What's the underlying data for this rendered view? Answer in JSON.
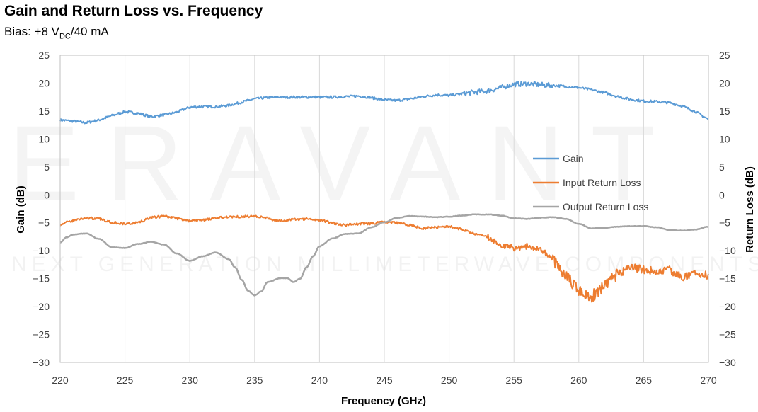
{
  "header": {
    "title": "Gain and Return Loss vs. Frequency",
    "subtitle_prefix": "Bias: +8 V",
    "subtitle_sub": "DC",
    "subtitle_suffix": "/40 mA"
  },
  "watermark": {
    "brand": "ERAVANT",
    "tagline": "NEXT GENERATION MILLIMETERWAVE COMPONENTS"
  },
  "colors": {
    "gain": "#5B9BD5",
    "input_return_loss": "#ED7D31",
    "output_return_loss": "#A5A5A5",
    "grid": "#D9D9D9"
  },
  "chart_data": {
    "type": "line",
    "xlabel": "Frequency (GHz)",
    "ylabel": "Gain (dB)",
    "y2label": "Return Loss (dB)",
    "xlim": [
      220,
      270
    ],
    "ylim": [
      -30,
      25
    ],
    "y2lim": [
      -30,
      25
    ],
    "xticks": [
      220,
      225,
      230,
      235,
      240,
      245,
      250,
      255,
      260,
      265,
      270
    ],
    "yticks": [
      25,
      20,
      15,
      10,
      5,
      0,
      -5,
      -10,
      -15,
      -20,
      -25,
      -30
    ],
    "grid": "vertical",
    "legend_position": "right",
    "series": [
      {
        "name": "Gain",
        "x": [
          220,
          221,
          222,
          223,
          224,
          225,
          226,
          227,
          228,
          229,
          230,
          231,
          232,
          233,
          234,
          235,
          236,
          237,
          238,
          239,
          240,
          241,
          242,
          243,
          244,
          245,
          246,
          247,
          248,
          249,
          250,
          251,
          252,
          253,
          254,
          255,
          256,
          257,
          258,
          259,
          260,
          261,
          262,
          263,
          264,
          265,
          266,
          267,
          268,
          269,
          270
        ],
        "values": [
          13.4,
          13.2,
          12.9,
          13.4,
          14.2,
          14.9,
          14.6,
          14.0,
          14.3,
          14.8,
          15.7,
          15.8,
          15.8,
          16.0,
          16.6,
          17.2,
          17.4,
          17.5,
          17.5,
          17.5,
          17.5,
          17.5,
          17.6,
          17.7,
          17.4,
          17.0,
          16.9,
          17.2,
          17.6,
          17.9,
          17.8,
          18.1,
          18.4,
          18.6,
          19.2,
          19.8,
          19.9,
          19.7,
          19.6,
          19.4,
          19.2,
          18.8,
          18.3,
          17.6,
          17.1,
          16.8,
          16.7,
          16.5,
          15.9,
          14.9,
          13.5
        ]
      },
      {
        "name": "Input Return Loss",
        "x": [
          220,
          221,
          222,
          223,
          224,
          225,
          226,
          227,
          228,
          229,
          230,
          231,
          232,
          233,
          234,
          235,
          236,
          237,
          238,
          239,
          240,
          241,
          242,
          243,
          244,
          245,
          246,
          247,
          248,
          249,
          250,
          251,
          252,
          253,
          254,
          255,
          256,
          257,
          258,
          259,
          260,
          261,
          262,
          263,
          264,
          265,
          266,
          267,
          268,
          269,
          270
        ],
        "values": [
          -5.3,
          -4.6,
          -4.1,
          -4.3,
          -4.9,
          -5.2,
          -5.0,
          -4.1,
          -3.8,
          -4.2,
          -4.7,
          -4.5,
          -4.2,
          -3.9,
          -3.9,
          -3.8,
          -4.2,
          -4.7,
          -4.4,
          -4.3,
          -4.5,
          -5.0,
          -5.4,
          -5.2,
          -5.1,
          -4.9,
          -5.0,
          -5.4,
          -6.0,
          -5.8,
          -5.6,
          -6.2,
          -7.0,
          -7.6,
          -9.0,
          -9.5,
          -9.2,
          -9.6,
          -11.5,
          -14.5,
          -17.0,
          -18.2,
          -16.5,
          -14.2,
          -13.0,
          -13.4,
          -13.7,
          -13.4,
          -14.8,
          -14.0,
          -14.5
        ]
      },
      {
        "name": "Output Return Loss",
        "x": [
          220,
          220.5,
          221,
          222,
          223,
          224,
          225,
          226,
          227,
          228,
          229,
          230,
          231,
          232,
          233,
          233.5,
          234,
          234.5,
          235,
          235.5,
          236,
          237,
          237.5,
          238,
          238.5,
          239,
          239.5,
          240,
          241,
          242,
          243,
          244,
          245,
          246,
          247,
          248,
          249,
          250,
          251,
          252,
          253,
          254,
          255,
          256,
          257,
          258,
          259,
          260,
          261,
          262,
          263,
          264,
          265,
          266,
          267,
          268,
          269,
          270
        ],
        "values": [
          -8.5,
          -7.6,
          -7.1,
          -6.9,
          -7.9,
          -9.4,
          -9.5,
          -8.8,
          -8.4,
          -8.9,
          -10.5,
          -11.8,
          -11.0,
          -10.3,
          -11.5,
          -13.0,
          -15.2,
          -17.2,
          -18.0,
          -17.3,
          -15.6,
          -14.9,
          -14.9,
          -15.6,
          -15.0,
          -13.0,
          -11.0,
          -9.2,
          -7.8,
          -7.0,
          -6.9,
          -5.8,
          -4.9,
          -4.1,
          -3.8,
          -3.9,
          -4.0,
          -3.9,
          -3.7,
          -3.5,
          -3.5,
          -3.7,
          -4.2,
          -4.3,
          -4.1,
          -4.0,
          -4.3,
          -5.2,
          -6.0,
          -5.9,
          -5.7,
          -5.6,
          -5.6,
          -5.8,
          -6.3,
          -6.4,
          -6.2,
          -5.7
        ]
      }
    ]
  }
}
